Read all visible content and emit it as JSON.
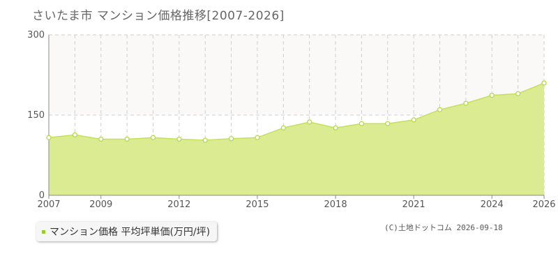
{
  "title": "さいたま市 マンション価格推移[2007-2026]",
  "legend": {
    "label": "マンション価格 平均坪単価(万円/坪)",
    "color": "#99cc33"
  },
  "copyright": "(C)土地ドットコム 2026-09-18",
  "colors": {
    "fill": "#dbeb92",
    "line": "#c4e05a",
    "point_stroke": "#b5d94a",
    "grid": "#cfcfcf",
    "upper_band": "#fbf8f8"
  },
  "chart_data": {
    "type": "area",
    "title": "",
    "xlabel": "",
    "ylabel": "",
    "xlim": [
      2007,
      2026
    ],
    "ylim": [
      0,
      300
    ],
    "yticks": [
      0,
      150,
      300
    ],
    "xtick_labels": [
      "2007",
      "2009",
      "2012",
      "2015",
      "2018",
      "2021",
      "2024",
      "2026"
    ],
    "grid": true,
    "legend_position": "bottom-left",
    "series": [
      {
        "name": "マンション価格 平均坪単価(万円/坪)",
        "x": [
          2007,
          2008,
          2009,
          2010,
          2011,
          2012,
          2013,
          2014,
          2015,
          2016,
          2017,
          2018,
          2019,
          2020,
          2021,
          2022,
          2023,
          2024,
          2025,
          2026
        ],
        "values": [
          108,
          113,
          105,
          105,
          108,
          105,
          103,
          106,
          108,
          126,
          137,
          126,
          134,
          134,
          141,
          160,
          172,
          187,
          190,
          210
        ]
      }
    ]
  }
}
